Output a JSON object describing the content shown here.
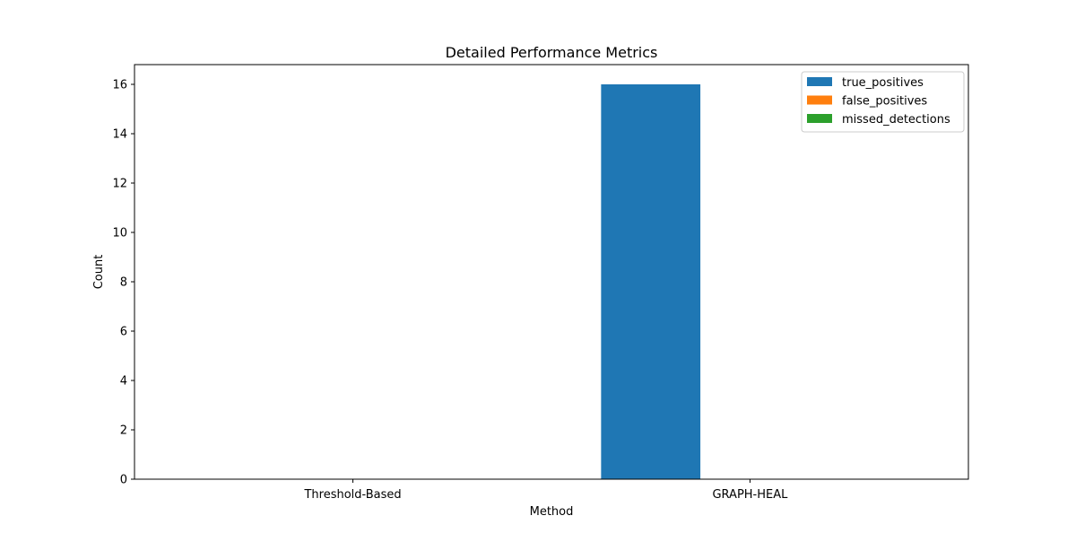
{
  "chart_data": {
    "type": "bar",
    "title": "Detailed Performance Metrics",
    "xlabel": "Method",
    "ylabel": "Count",
    "categories": [
      "Threshold-Based",
      "GRAPH-HEAL"
    ],
    "series": [
      {
        "name": "true_positives",
        "values": [
          0,
          16
        ],
        "color": "#1f77b4"
      },
      {
        "name": "false_positives",
        "values": [
          0,
          0
        ],
        "color": "#ff7f0e"
      },
      {
        "name": "missed_detections",
        "values": [
          0,
          0
        ],
        "color": "#2ca02c"
      }
    ],
    "ylim": [
      0,
      16.8
    ],
    "yticks": [
      0,
      2,
      4,
      6,
      8,
      10,
      12,
      14,
      16
    ],
    "grid": false,
    "legend_position": "top-right"
  }
}
